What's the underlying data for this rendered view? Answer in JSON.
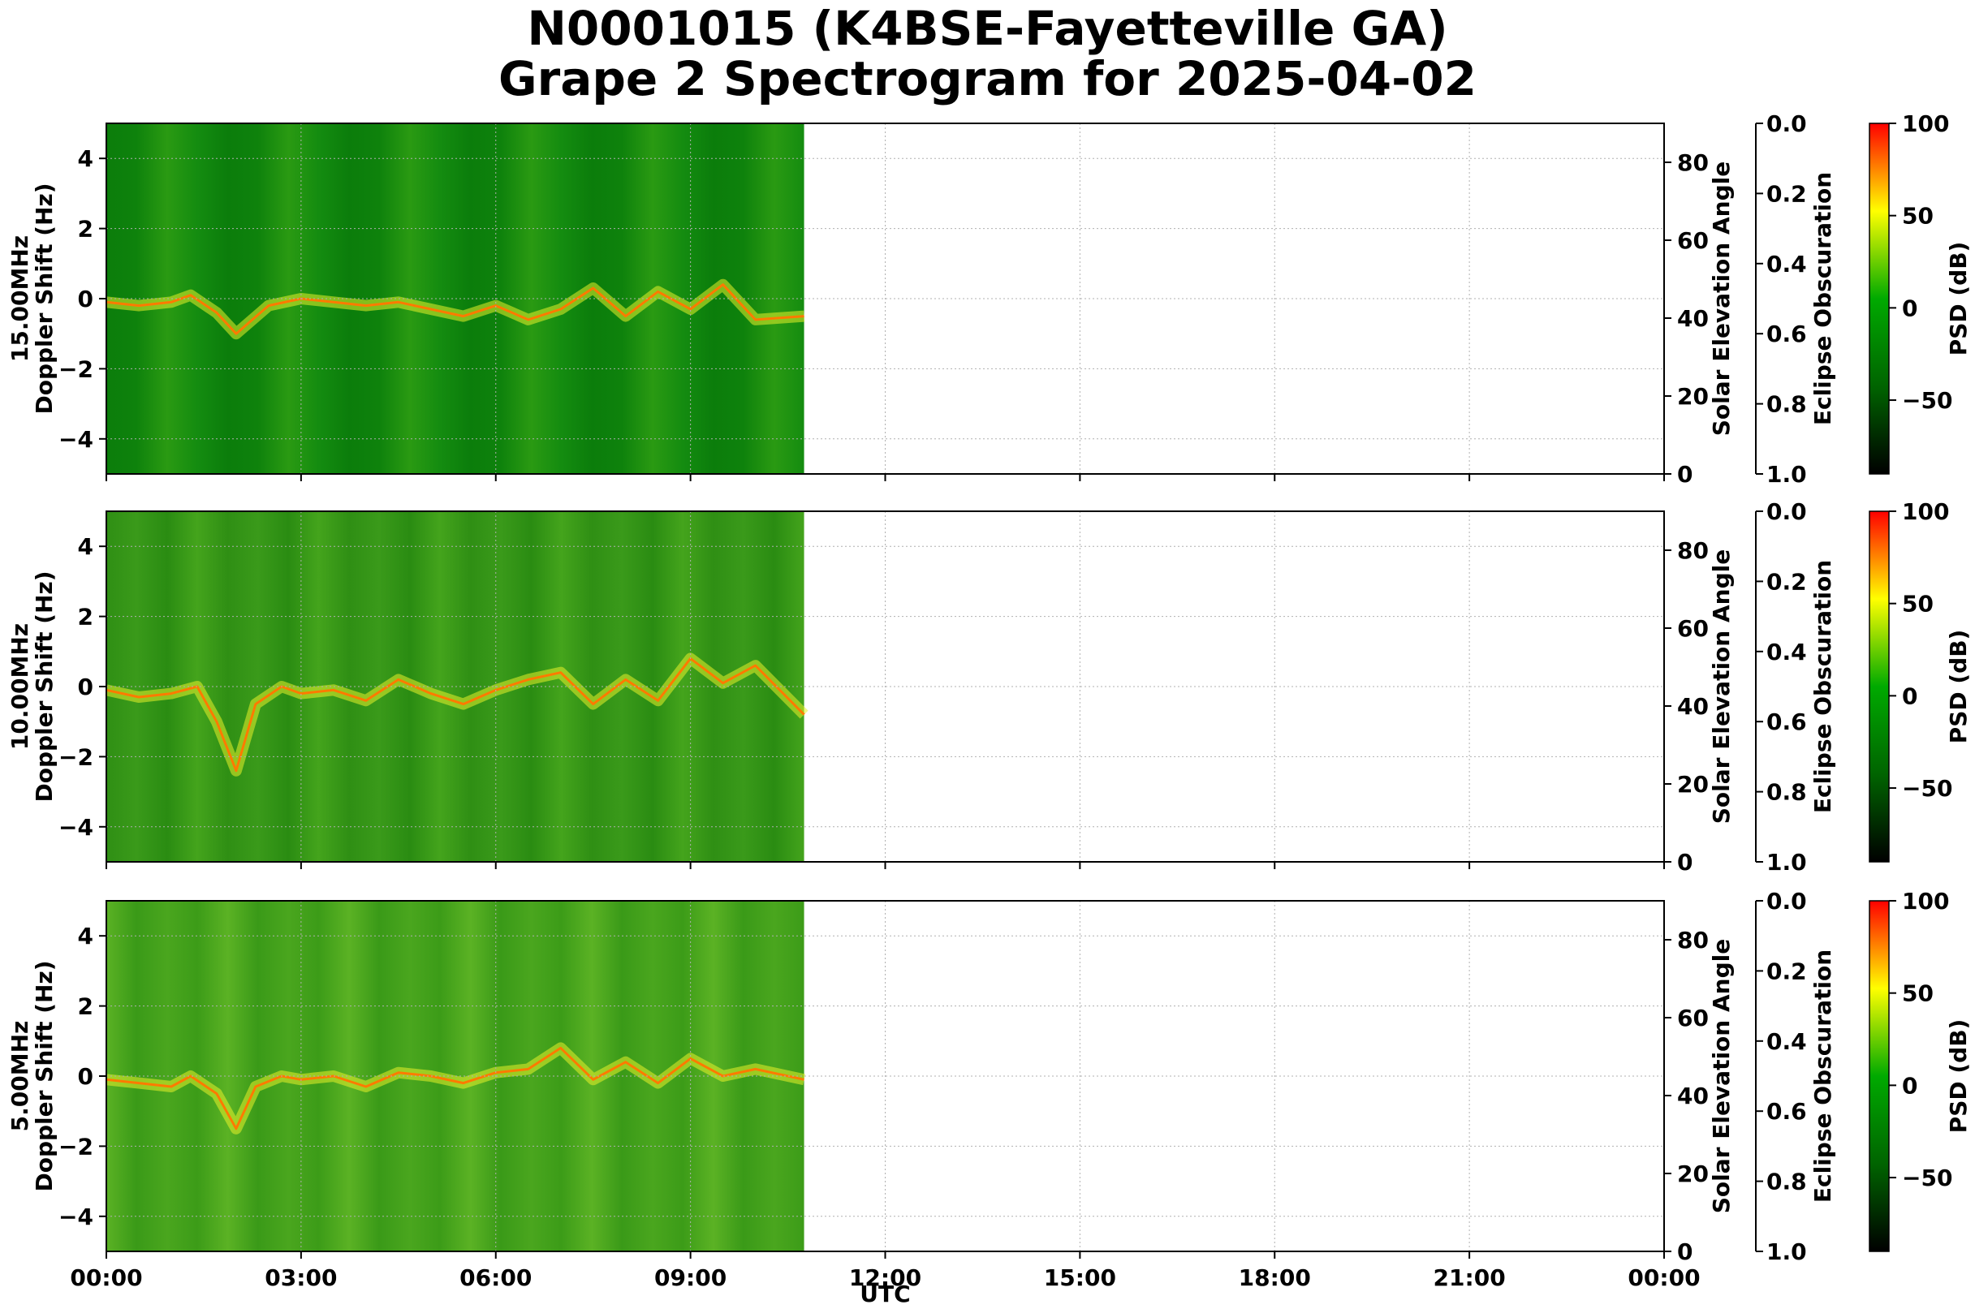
{
  "title_line1": "N0001015 (K4BSE-Fayetteville GA)",
  "title_line2": "Grape 2 Spectrogram for 2025-04-02",
  "chart_data": {
    "type": "heatmap",
    "x_label": "UTC",
    "x_ticks": [
      "00:00",
      "03:00",
      "06:00",
      "09:00",
      "12:00",
      "15:00",
      "18:00",
      "21:00",
      "00:00"
    ],
    "x_range_hours": [
      0,
      24
    ],
    "data_end_hours": 10.75,
    "y_range": [
      -5,
      5
    ],
    "y_ticks": [
      4,
      2,
      0,
      -2,
      -4
    ],
    "y_tick_labels": [
      "4",
      "2",
      "0",
      "−2",
      "−4"
    ],
    "solar_axis_label": "Solar Elevation Angle",
    "solar_ticks": [
      0,
      20,
      40,
      60,
      80
    ],
    "solar_range": [
      0,
      90
    ],
    "eclipse_axis_label": "Eclipse Obscuration",
    "eclipse_ticks": [
      "0.0",
      "0.2",
      "0.4",
      "0.6",
      "0.8",
      "1.0"
    ],
    "colorbar_label": "PSD (dB)",
    "colorbar_ticks": [
      100,
      50,
      0,
      -50
    ],
    "colorbar_tick_labels": [
      "100",
      "50",
      "0",
      "−50"
    ],
    "colorbar_range": [
      -90,
      100
    ],
    "colormap": [
      "#000000",
      "#006400",
      "#00aa00",
      "#ffff00",
      "#ff0000"
    ],
    "grid": true,
    "panels": [
      {
        "frequency": "15.00MHz",
        "y_label": "Doppler Shift (Hz)",
        "trace_hours": [
          0,
          0.5,
          1,
          1.3,
          1.7,
          2.0,
          2.5,
          3,
          3.5,
          4,
          4.5,
          5,
          5.5,
          6,
          6.5,
          7,
          7.5,
          8,
          8.5,
          9,
          9.5,
          10,
          10.75
        ],
        "trace_hz": [
          -0.1,
          -0.2,
          -0.1,
          0.1,
          -0.4,
          -1.0,
          -0.2,
          0.0,
          -0.1,
          -0.2,
          -0.1,
          -0.3,
          -0.5,
          -0.2,
          -0.6,
          -0.3,
          0.3,
          -0.5,
          0.2,
          -0.3,
          0.4,
          -0.6,
          -0.5
        ]
      },
      {
        "frequency": "10.00MHz",
        "y_label": "Doppler Shift (Hz)",
        "trace_hours": [
          0,
          0.5,
          1,
          1.4,
          1.7,
          2.0,
          2.3,
          2.7,
          3,
          3.5,
          4,
          4.5,
          5,
          5.5,
          6,
          6.5,
          7,
          7.5,
          8,
          8.5,
          9,
          9.5,
          10,
          10.75
        ],
        "trace_hz": [
          -0.1,
          -0.3,
          -0.2,
          0.0,
          -1.0,
          -2.4,
          -0.5,
          0.0,
          -0.2,
          -0.1,
          -0.4,
          0.2,
          -0.2,
          -0.5,
          -0.1,
          0.2,
          0.4,
          -0.5,
          0.2,
          -0.4,
          0.8,
          0.1,
          0.6,
          -0.8
        ]
      },
      {
        "frequency": "5.00MHz",
        "y_label": "Doppler Shift (Hz)",
        "trace_hours": [
          0,
          0.5,
          1,
          1.3,
          1.7,
          2.0,
          2.3,
          2.7,
          3,
          3.5,
          4,
          4.5,
          5,
          5.5,
          6,
          6.5,
          7,
          7.5,
          8,
          8.5,
          9,
          9.5,
          10,
          10.75
        ],
        "trace_hz": [
          -0.1,
          -0.2,
          -0.3,
          0.0,
          -0.5,
          -1.5,
          -0.3,
          0.0,
          -0.1,
          0.0,
          -0.3,
          0.1,
          0.0,
          -0.2,
          0.1,
          0.2,
          0.8,
          -0.1,
          0.4,
          -0.2,
          0.5,
          0.0,
          0.2,
          -0.1
        ]
      }
    ]
  }
}
